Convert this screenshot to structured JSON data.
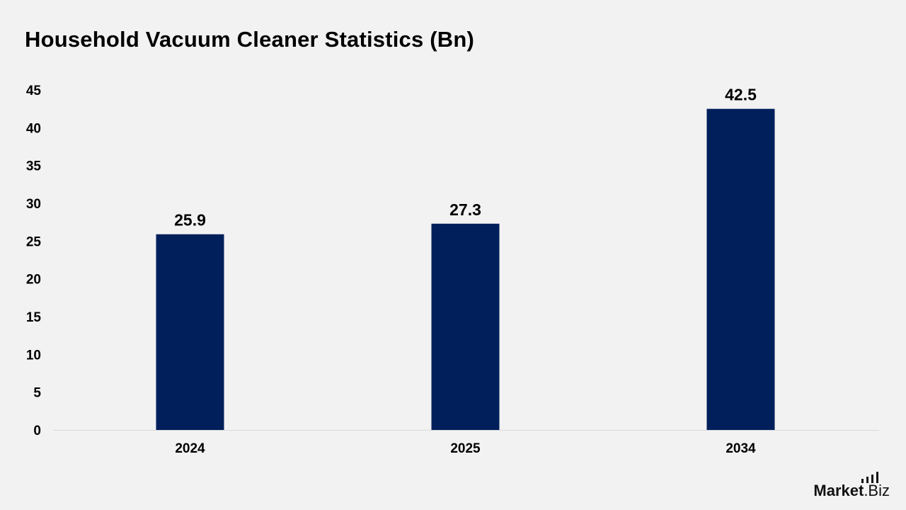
{
  "chart_data": {
    "type": "bar",
    "title": "Household Vacuum Cleaner Statistics (Bn)",
    "categories": [
      "2024",
      "2025",
      "2034"
    ],
    "values": [
      25.9,
      27.3,
      42.5
    ],
    "value_labels": [
      "25.9",
      "27.3",
      "42.5"
    ],
    "ylim": [
      0,
      45
    ],
    "yticks": [
      0,
      5,
      10,
      15,
      20,
      25,
      30,
      35,
      40,
      45
    ],
    "xlabel": "",
    "ylabel": "",
    "grid": false,
    "bar_color": "#001f5b",
    "background": "#f2f2f2"
  },
  "brand": {
    "name_bold": "Market",
    "name_rest": ".Biz"
  }
}
